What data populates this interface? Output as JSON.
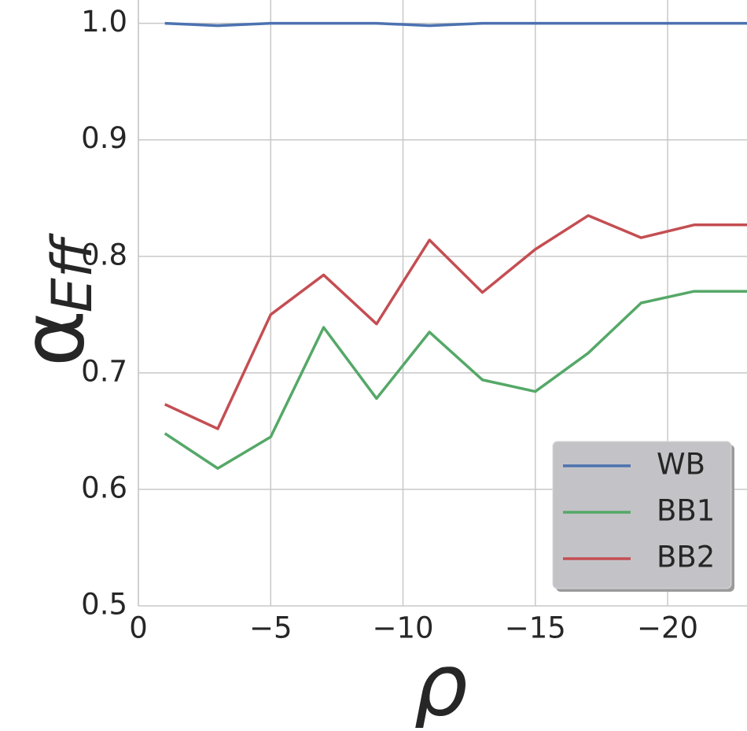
{
  "chart_data": {
    "type": "line",
    "xlabel": "ρ",
    "ylabel": {
      "main": "α",
      "sub": "Eff"
    },
    "x": [
      -1,
      -3,
      -5,
      -7,
      -9,
      -11,
      -13,
      -15,
      -17,
      -19,
      -21,
      -23
    ],
    "series": [
      {
        "name": "WB",
        "color": "#4c72b0",
        "values": [
          1.0,
          0.998,
          1.0,
          1.0,
          1.0,
          0.998,
          1.0,
          1.0,
          1.0,
          1.0,
          1.0,
          1.0
        ]
      },
      {
        "name": "BB1",
        "color": "#55a868",
        "values": [
          0.648,
          0.618,
          0.645,
          0.739,
          0.678,
          0.735,
          0.694,
          0.684,
          0.717,
          0.76,
          0.77,
          0.77
        ]
      },
      {
        "name": "BB2",
        "color": "#c44e52",
        "values": [
          0.673,
          0.652,
          0.75,
          0.784,
          0.742,
          0.814,
          0.769,
          0.806,
          0.835,
          0.816,
          0.827,
          0.827
        ]
      }
    ],
    "xlim": [
      0,
      -23
    ],
    "ylim": [
      0.5,
      1.02
    ],
    "xticks": [
      0,
      {
        "value": -5,
        "label": "−5"
      },
      {
        "value": -10,
        "label": "−10"
      },
      {
        "value": -15,
        "label": "−15"
      },
      {
        "value": -20,
        "label": "−20"
      }
    ],
    "yticks": [
      0.5,
      0.6,
      0.7,
      0.8,
      0.9,
      {
        "value": 1.0,
        "label": "1.0"
      }
    ],
    "grid": true,
    "legend": "lower right"
  }
}
